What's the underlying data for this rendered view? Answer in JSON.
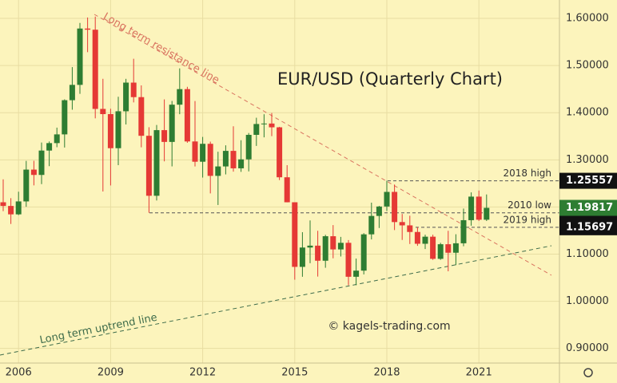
{
  "chart_data": {
    "type": "candlestick",
    "title": "EUR/USD (Quarterly Chart)",
    "watermark": "© kagels-trading.com",
    "resistance_label": "Long term resistance line",
    "uptrend_label": "Long term uptrend line",
    "categories": [
      null,
      null,
      "2006",
      null,
      null,
      null,
      null,
      null,
      null,
      null,
      null,
      null,
      null,
      null,
      "2009",
      null,
      null,
      null,
      null,
      null,
      null,
      null,
      null,
      null,
      null,
      null,
      "2012",
      null,
      null,
      null,
      null,
      null,
      null,
      null,
      null,
      null,
      null,
      null,
      "2015",
      null,
      null,
      null,
      null,
      null,
      null,
      null,
      null,
      null,
      null,
      null,
      "2018",
      null,
      null,
      null,
      null,
      null,
      null,
      null,
      null,
      null,
      null,
      null,
      "2021",
      null
    ],
    "open": [
      1.21,
      1.2022,
      1.1844,
      1.2118,
      1.2793,
      1.268,
      1.3197,
      1.3355,
      1.354,
      1.4265,
      1.459,
      1.5785,
      1.576,
      1.408,
      1.397,
      1.3247,
      1.403,
      1.4638,
      1.433,
      1.351,
      1.2238,
      1.363,
      1.338,
      1.417,
      1.45,
      1.339,
      1.296,
      1.334,
      1.266,
      1.286,
      1.319,
      1.282,
      1.301,
      1.353,
      1.376,
      1.377,
      1.369,
      1.263,
      1.21,
      1.073,
      1.114,
      1.118,
      1.086,
      1.138,
      1.11,
      1.124,
      1.052,
      1.065,
      1.142,
      1.181,
      1.201,
      1.232,
      1.168,
      1.161,
      1.147,
      1.122,
      1.137,
      1.09,
      1.121,
      1.103,
      1.123,
      1.172,
      1.222,
      1.173
    ],
    "high": [
      1.2586,
      1.2187,
      1.2324,
      1.2978,
      1.298,
      1.3367,
      1.339,
      1.3683,
      1.4283,
      1.4967,
      1.5904,
      1.6019,
      1.6038,
      1.4719,
      1.4084,
      1.4338,
      1.4718,
      1.5144,
      1.4579,
      1.3692,
      1.3739,
      1.4282,
      1.4249,
      1.494,
      1.4549,
      1.4247,
      1.3486,
      1.3386,
      1.3172,
      1.3308,
      1.3711,
      1.3416,
      1.3569,
      1.3893,
      1.3967,
      1.3993,
      1.37,
      1.2887,
      1.21,
      1.1466,
      1.1714,
      1.1495,
      1.141,
      1.1616,
      1.1366,
      1.1299,
      1.0906,
      1.1445,
      1.2092,
      1.2023,
      1.2556,
      1.2476,
      1.1851,
      1.1815,
      1.157,
      1.1412,
      1.1412,
      1.124,
      1.1495,
      1.1422,
      1.1966,
      1.231,
      1.2349,
      1.2266
    ],
    "low": [
      1.1911,
      1.164,
      1.1828,
      1.2004,
      1.2458,
      1.2484,
      1.2866,
      1.3268,
      1.3261,
      1.4063,
      1.44,
      1.5284,
      1.388,
      1.2329,
      1.2457,
      1.2886,
      1.375,
      1.4218,
      1.3266,
      1.1876,
      1.2138,
      1.2968,
      1.2861,
      1.3968,
      1.3362,
      1.2859,
      1.2624,
      1.2288,
      1.2042,
      1.2691,
      1.275,
      1.2745,
      1.2755,
      1.3295,
      1.3477,
      1.3503,
      1.2571,
      1.2098,
      1.0458,
      1.052,
      1.0808,
      1.0524,
      1.0711,
      1.0912,
      1.095,
      1.034,
      1.034,
      1.057,
      1.1312,
      1.1554,
      1.1915,
      1.151,
      1.1301,
      1.1215,
      1.1176,
      1.1107,
      1.0879,
      1.0879,
      1.0636,
      1.0767,
      1.1168,
      1.1603,
      1.1704,
      1.1703
    ],
    "close": [
      1.2022,
      1.1844,
      1.2118,
      1.2793,
      1.268,
      1.3197,
      1.3355,
      1.354,
      1.4265,
      1.459,
      1.5785,
      1.576,
      1.408,
      1.397,
      1.3247,
      1.403,
      1.4638,
      1.433,
      1.351,
      1.2238,
      1.363,
      1.338,
      1.417,
      1.45,
      1.339,
      1.296,
      1.334,
      1.266,
      1.286,
      1.319,
      1.282,
      1.301,
      1.353,
      1.376,
      1.377,
      1.369,
      1.263,
      1.21,
      1.073,
      1.114,
      1.118,
      1.086,
      1.138,
      1.11,
      1.124,
      1.052,
      1.065,
      1.142,
      1.181,
      1.201,
      1.232,
      1.168,
      1.161,
      1.147,
      1.122,
      1.137,
      1.09,
      1.121,
      1.103,
      1.123,
      1.172,
      1.222,
      1.173,
      1.19817
    ],
    "up_color": "#2e7d32",
    "down_color": "#e53935",
    "levels": [
      {
        "name": "2018 high",
        "value": 1.25557
      },
      {
        "name": "2010 low",
        "value": 1.18765
      },
      {
        "name": "2019 high",
        "value": 1.15697
      }
    ],
    "last_price": 1.19817,
    "last_price_color": "#2e7d32",
    "ylim": [
      0.869,
      1.639
    ],
    "yticks": [
      {
        "value": 0.9,
        "label": "0.90000"
      },
      {
        "value": 1.0,
        "label": "1.00000"
      },
      {
        "value": 1.1,
        "label": "1.10000"
      },
      {
        "value": 1.2,
        "label": "1.20000"
      },
      {
        "value": 1.3,
        "label": "1.30000"
      },
      {
        "value": 1.4,
        "label": "1.40000"
      },
      {
        "value": 1.5,
        "label": "1.50000"
      },
      {
        "value": 1.6,
        "label": "1.60000"
      }
    ],
    "grid": true
  }
}
